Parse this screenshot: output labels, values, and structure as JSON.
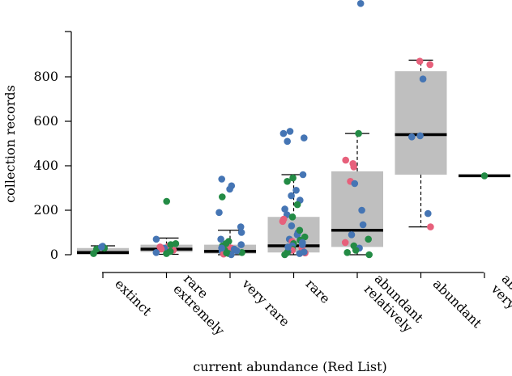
{
  "chart_data": {
    "type": "box",
    "xlabel": "current abundance (Red List)",
    "ylabel": "collection records",
    "ylim": [
      0,
      1000
    ],
    "yticks": [
      0,
      200,
      400,
      600,
      800
    ],
    "categories": [
      [
        "extinct"
      ],
      [
        "extremely",
        "rare"
      ],
      [
        "very rare"
      ],
      [
        "rare"
      ],
      [
        "relatively",
        "abundant"
      ],
      [
        "abundant"
      ],
      [
        "very",
        "abundant"
      ]
    ],
    "boxes": [
      {
        "whisker_low": 0,
        "q1": 0,
        "median": 10,
        "q3": 30,
        "whisker_high": 40
      },
      {
        "whisker_low": 2,
        "q1": 12,
        "median": 25,
        "q3": 45,
        "whisker_high": 75
      },
      {
        "whisker_low": 0,
        "q1": 5,
        "median": 15,
        "q3": 45,
        "whisker_high": 110
      },
      {
        "whisker_low": 0,
        "q1": 10,
        "median": 40,
        "q3": 170,
        "whisker_high": 360
      },
      {
        "whisker_low": 0,
        "q1": 35,
        "median": 110,
        "q3": 375,
        "whisker_high": 545
      },
      {
        "whisker_low": 125,
        "q1": 360,
        "median": 540,
        "q3": 825,
        "whisker_high": 875
      },
      {
        "whisker_low": 355,
        "q1": 355,
        "median": 355,
        "q3": 355,
        "whisker_high": 355
      }
    ],
    "point_colors": {
      "blue": "#4575b4",
      "green": "#238b45",
      "pink": "#e7607b"
    },
    "points": [
      [
        [
          38,
          "blue"
        ],
        [
          30,
          "green"
        ],
        [
          5,
          "green"
        ],
        [
          25,
          "green"
        ],
        [
          35,
          "blue"
        ]
      ],
      [
        [
          240,
          "green"
        ],
        [
          70,
          "blue"
        ],
        [
          50,
          "green"
        ],
        [
          40,
          "pink"
        ],
        [
          30,
          "blue"
        ],
        [
          25,
          "pink"
        ],
        [
          20,
          "pink"
        ],
        [
          15,
          "green"
        ],
        [
          10,
          "blue"
        ],
        [
          5,
          "green"
        ],
        [
          35,
          "pink"
        ],
        [
          45,
          "green"
        ]
      ],
      [
        [
          340,
          "blue"
        ],
        [
          310,
          "blue"
        ],
        [
          295,
          "blue"
        ],
        [
          260,
          "green"
        ],
        [
          190,
          "blue"
        ],
        [
          125,
          "blue"
        ],
        [
          100,
          "blue"
        ],
        [
          70,
          "blue"
        ],
        [
          60,
          "green"
        ],
        [
          45,
          "blue"
        ],
        [
          40,
          "green"
        ],
        [
          35,
          "pink"
        ],
        [
          30,
          "pink"
        ],
        [
          25,
          "blue"
        ],
        [
          20,
          "green"
        ],
        [
          15,
          "blue"
        ],
        [
          10,
          "green"
        ],
        [
          5,
          "green"
        ],
        [
          3,
          "pink"
        ],
        [
          0,
          "blue"
        ],
        [
          50,
          "green"
        ],
        [
          30,
          "blue"
        ],
        [
          18,
          "blue"
        ],
        [
          8,
          "green"
        ]
      ],
      [
        [
          555,
          "blue"
        ],
        [
          545,
          "blue"
        ],
        [
          525,
          "blue"
        ],
        [
          510,
          "blue"
        ],
        [
          360,
          "blue"
        ],
        [
          345,
          "green"
        ],
        [
          330,
          "green"
        ],
        [
          290,
          "blue"
        ],
        [
          265,
          "blue"
        ],
        [
          245,
          "blue"
        ],
        [
          225,
          "green"
        ],
        [
          205,
          "blue"
        ],
        [
          180,
          "blue"
        ],
        [
          170,
          "green"
        ],
        [
          160,
          "pink"
        ],
        [
          150,
          "pink"
        ],
        [
          130,
          "blue"
        ],
        [
          100,
          "blue"
        ],
        [
          90,
          "blue"
        ],
        [
          80,
          "green"
        ],
        [
          70,
          "blue"
        ],
        [
          60,
          "pink"
        ],
        [
          50,
          "green"
        ],
        [
          40,
          "blue"
        ],
        [
          30,
          "pink"
        ],
        [
          25,
          "green"
        ],
        [
          20,
          "pink"
        ],
        [
          15,
          "blue"
        ],
        [
          10,
          "green"
        ],
        [
          5,
          "blue"
        ],
        [
          0,
          "green"
        ],
        [
          35,
          "blue"
        ],
        [
          65,
          "green"
        ],
        [
          45,
          "blue"
        ],
        [
          8,
          "pink"
        ],
        [
          12,
          "blue"
        ],
        [
          55,
          "blue"
        ],
        [
          110,
          "green"
        ]
      ],
      [
        [
          1130,
          "blue"
        ],
        [
          545,
          "green"
        ],
        [
          425,
          "pink"
        ],
        [
          410,
          "pink"
        ],
        [
          395,
          "pink"
        ],
        [
          330,
          "pink"
        ],
        [
          320,
          "blue"
        ],
        [
          200,
          "blue"
        ],
        [
          135,
          "blue"
        ],
        [
          90,
          "blue"
        ],
        [
          70,
          "green"
        ],
        [
          55,
          "pink"
        ],
        [
          40,
          "green"
        ],
        [
          30,
          "blue"
        ],
        [
          20,
          "green"
        ],
        [
          10,
          "green"
        ],
        [
          0,
          "green"
        ]
      ],
      [
        [
          870,
          "pink"
        ],
        [
          855,
          "pink"
        ],
        [
          790,
          "blue"
        ],
        [
          535,
          "blue"
        ],
        [
          530,
          "blue"
        ],
        [
          185,
          "blue"
        ],
        [
          125,
          "pink"
        ]
      ],
      [
        [
          355,
          "green"
        ]
      ]
    ]
  }
}
